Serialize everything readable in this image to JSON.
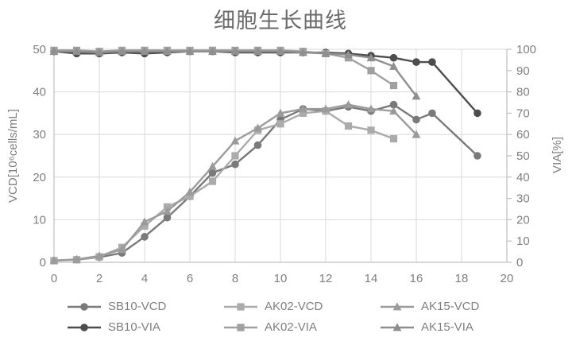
{
  "title": "细胞生长曲线",
  "colors": {
    "background": "#ffffff",
    "grid": "#d9d9d9",
    "axis": "#bfbfbf",
    "tick_text": "#7f7f7f",
    "title_text": "#6b6b6b"
  },
  "chart_data": {
    "type": "line",
    "title": "细胞生长曲线",
    "grid": true,
    "legend_position": "bottom",
    "x_axis": {
      "min": 0,
      "max": 20,
      "ticks": [
        0,
        2,
        4,
        6,
        8,
        10,
        12,
        14,
        16,
        18,
        20
      ]
    },
    "y_axis_left": {
      "label": "VCD[10⁶cells/mL]",
      "min": 0,
      "max": 50,
      "ticks": [
        0,
        10,
        20,
        30,
        40,
        50
      ]
    },
    "y_axis_right": {
      "label": "VIA[%]",
      "min": 0,
      "max": 100,
      "ticks": [
        0,
        10,
        20,
        30,
        40,
        50,
        60,
        70,
        80,
        90,
        100
      ]
    },
    "series": [
      {
        "name": "SB10-VCD",
        "axis": "left",
        "marker": "circle",
        "color": "#7a7a7a",
        "x": [
          0,
          1,
          2,
          3,
          4,
          5,
          6,
          7,
          8,
          9,
          10,
          11,
          12,
          13,
          14,
          15,
          16,
          16.7,
          18.7
        ],
        "y": [
          0.4,
          0.6,
          1.2,
          2.2,
          6,
          10.5,
          15.5,
          21,
          23,
          27.5,
          33.5,
          36,
          35.5,
          36.5,
          35.5,
          37,
          33.5,
          35,
          25
        ]
      },
      {
        "name": "AK02-VCD",
        "axis": "left",
        "marker": "square",
        "color": "#ababab",
        "x": [
          0,
          1,
          2,
          3,
          4,
          5,
          6,
          7,
          8,
          9,
          10,
          11,
          12,
          13,
          14,
          15
        ],
        "y": [
          0.4,
          0.6,
          1.3,
          3.5,
          8.5,
          13,
          15.5,
          19,
          25,
          31,
          32.5,
          35,
          35.5,
          32,
          31,
          29
        ]
      },
      {
        "name": "AK15-VCD",
        "axis": "left",
        "marker": "triangle",
        "color": "#9b9b9b",
        "x": [
          0,
          1,
          2,
          3,
          4,
          5,
          6,
          7,
          8,
          9,
          10,
          11,
          12,
          13,
          14,
          15,
          16
        ],
        "y": [
          0.4,
          0.7,
          1.5,
          3,
          9.5,
          12,
          16.5,
          22.5,
          28.5,
          31.5,
          35,
          36,
          36,
          37,
          36,
          35.5,
          30
        ]
      },
      {
        "name": "SB10-VIA",
        "axis": "right",
        "marker": "circle",
        "color": "#4d4d4d",
        "x": [
          0,
          1,
          2,
          3,
          4,
          5,
          6,
          7,
          8,
          9,
          10,
          11,
          12,
          13,
          14,
          15,
          16,
          16.7,
          18.7
        ],
        "y": [
          99,
          98,
          98,
          98.5,
          98,
          98.5,
          99,
          99,
          98.5,
          98.5,
          98.5,
          98.5,
          98.5,
          98,
          97,
          96,
          94,
          94,
          70
        ]
      },
      {
        "name": "AK02-VIA",
        "axis": "right",
        "marker": "square",
        "color": "#a0a0a0",
        "x": [
          0,
          1,
          2,
          3,
          4,
          5,
          6,
          7,
          8,
          9,
          10,
          11,
          12,
          13,
          14,
          15
        ],
        "y": [
          99.5,
          99.5,
          99,
          99.5,
          99.5,
          99.5,
          99.5,
          99.5,
          99.5,
          99.5,
          99.5,
          99,
          98,
          96,
          90,
          83
        ]
      },
      {
        "name": "AK15-VIA",
        "axis": "right",
        "marker": "triangle",
        "color": "#8f8f8f",
        "x": [
          0,
          1,
          2,
          3,
          4,
          5,
          6,
          7,
          8,
          9,
          10,
          11,
          12,
          13,
          14,
          15,
          16
        ],
        "y": [
          99,
          99,
          98.5,
          99,
          99,
          99,
          99,
          99,
          99,
          99,
          99,
          98.5,
          98,
          97.5,
          96,
          92,
          78
        ]
      }
    ]
  }
}
